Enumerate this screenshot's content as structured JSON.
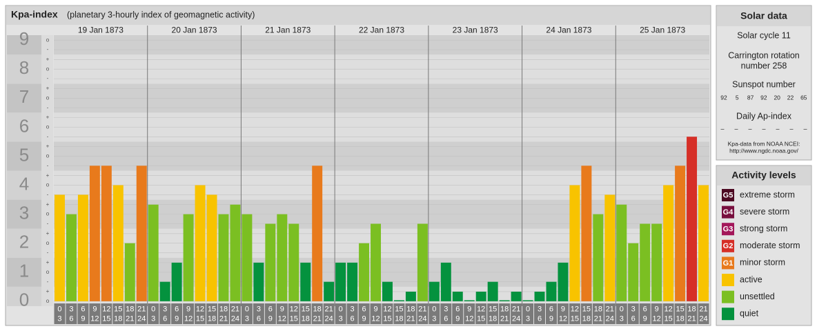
{
  "chart_data": {
    "type": "bar",
    "title": "Kpa-index",
    "subtitle": "(planetary 3-hourly index of geomagnetic activity)",
    "days": [
      "19 Jan 1873",
      "20 Jan 1873",
      "21 Jan 1873",
      "22 Jan 1873",
      "23 Jan 1873",
      "24 Jan 1873",
      "25 Jan 1873"
    ],
    "categories": [
      [
        0,
        3
      ],
      [
        3,
        6
      ],
      [
        6,
        9
      ],
      [
        9,
        12
      ],
      [
        12,
        15
      ],
      [
        15,
        18
      ],
      [
        18,
        21
      ],
      [
        21,
        24
      ],
      [
        0,
        3
      ],
      [
        3,
        6
      ],
      [
        6,
        9
      ],
      [
        9,
        12
      ],
      [
        12,
        15
      ],
      [
        15,
        18
      ],
      [
        18,
        21
      ],
      [
        21,
        24
      ],
      [
        0,
        3
      ],
      [
        3,
        6
      ],
      [
        6,
        9
      ],
      [
        9,
        12
      ],
      [
        12,
        15
      ],
      [
        15,
        18
      ],
      [
        18,
        21
      ],
      [
        21,
        24
      ],
      [
        0,
        3
      ],
      [
        3,
        6
      ],
      [
        6,
        9
      ],
      [
        9,
        12
      ],
      [
        12,
        15
      ],
      [
        15,
        18
      ],
      [
        18,
        21
      ],
      [
        21,
        24
      ],
      [
        0,
        3
      ],
      [
        3,
        6
      ],
      [
        6,
        9
      ],
      [
        9,
        12
      ],
      [
        12,
        15
      ],
      [
        15,
        18
      ],
      [
        18,
        21
      ],
      [
        21,
        24
      ],
      [
        0,
        3
      ],
      [
        3,
        6
      ],
      [
        6,
        9
      ],
      [
        9,
        12
      ],
      [
        12,
        15
      ],
      [
        15,
        18
      ],
      [
        18,
        21
      ],
      [
        21,
        24
      ],
      [
        0,
        3
      ],
      [
        3,
        6
      ],
      [
        6,
        9
      ],
      [
        9,
        12
      ],
      [
        12,
        15
      ],
      [
        15,
        18
      ],
      [
        18,
        21
      ],
      [
        21,
        24
      ]
    ],
    "values": [
      3.67,
      3,
      3.67,
      4.67,
      4.67,
      4,
      2,
      4.67,
      3.33,
      0.67,
      1.33,
      3,
      4,
      3.67,
      3,
      3.33,
      3,
      1.33,
      2.67,
      3,
      2.67,
      1.33,
      4.67,
      0.67,
      1.33,
      1.33,
      2,
      2.67,
      0.67,
      0,
      0.33,
      2.67,
      0.67,
      1.33,
      0.33,
      0,
      0.33,
      0.67,
      0,
      0.33,
      0,
      0.33,
      0.67,
      1.33,
      4,
      4.67,
      3,
      3.67,
      3.33,
      2,
      2.67,
      2.67,
      4,
      4.67,
      5.67,
      4
    ],
    "colors": [
      "#f8c300",
      "#7bbf22",
      "#f8c300",
      "#e87a1c",
      "#e87a1c",
      "#f8c300",
      "#7bbf22",
      "#e87a1c",
      "#7bbf22",
      "#04923e",
      "#04923e",
      "#7bbf22",
      "#f8c300",
      "#f8c300",
      "#7bbf22",
      "#7bbf22",
      "#7bbf22",
      "#04923e",
      "#7bbf22",
      "#7bbf22",
      "#7bbf22",
      "#04923e",
      "#e87a1c",
      "#04923e",
      "#04923e",
      "#04923e",
      "#7bbf22",
      "#7bbf22",
      "#04923e",
      "#04923e",
      "#04923e",
      "#7bbf22",
      "#04923e",
      "#04923e",
      "#04923e",
      "#04923e",
      "#04923e",
      "#04923e",
      "#04923e",
      "#04923e",
      "#04923e",
      "#04923e",
      "#04923e",
      "#04923e",
      "#f8c300",
      "#e87a1c",
      "#7bbf22",
      "#f8c300",
      "#7bbf22",
      "#7bbf22",
      "#7bbf22",
      "#7bbf22",
      "#f8c300",
      "#e87a1c",
      "#d62f27",
      "#f8c300"
    ],
    "ylim": [
      -0.17,
      9.17
    ],
    "yticks": [
      0,
      1,
      2,
      3,
      4,
      5,
      6,
      7,
      8,
      9
    ],
    "minor_yticks": [
      {
        "value": 0,
        "label": "o"
      },
      {
        "value": 0.33,
        "label": "+"
      },
      {
        "value": 0.67,
        "label": "-"
      },
      {
        "value": 1,
        "label": "o"
      },
      {
        "value": 1.33,
        "label": "+"
      },
      {
        "value": 1.67,
        "label": "-"
      },
      {
        "value": 2,
        "label": "o"
      },
      {
        "value": 2.33,
        "label": "+"
      },
      {
        "value": 2.67,
        "label": "-"
      },
      {
        "value": 3,
        "label": "o"
      },
      {
        "value": 3.33,
        "label": "+"
      },
      {
        "value": 3.67,
        "label": "-"
      },
      {
        "value": 4,
        "label": "o"
      },
      {
        "value": 4.33,
        "label": "+"
      },
      {
        "value": 4.67,
        "label": "-"
      },
      {
        "value": 5,
        "label": "o"
      },
      {
        "value": 5.33,
        "label": "+"
      },
      {
        "value": 5.67,
        "label": "-"
      },
      {
        "value": 6,
        "label": "o"
      },
      {
        "value": 6.33,
        "label": "+"
      },
      {
        "value": 6.67,
        "label": "-"
      },
      {
        "value": 7,
        "label": "o"
      },
      {
        "value": 7.33,
        "label": "+"
      },
      {
        "value": 7.67,
        "label": "-"
      },
      {
        "value": 8,
        "label": "o"
      },
      {
        "value": 8.33,
        "label": "+"
      },
      {
        "value": 8.67,
        "label": "-"
      },
      {
        "value": 9,
        "label": "o"
      }
    ],
    "grid": true
  },
  "solar_data": {
    "title": "Solar data",
    "solar_cycle": "Solar cycle 11",
    "carrington": [
      "Carrington rotation",
      "number 258"
    ],
    "sunspot_title": "Sunspot number",
    "sunspot_numbers": [
      92,
      5,
      87,
      92,
      20,
      22,
      65
    ],
    "ap_title": "Daily Ap-index",
    "ap_values": [
      "–",
      "–",
      "–",
      "–",
      "–",
      "–",
      "–"
    ],
    "source": [
      "Kpa-data from NOAA NCEI:",
      "http://www.ngdc.noaa.gov/"
    ]
  },
  "activity_levels": {
    "title": "Activity levels",
    "items": [
      {
        "badge": "G5",
        "label": "extreme storm",
        "color": "#4d0a22"
      },
      {
        "badge": "G4",
        "label": "severe storm",
        "color": "#780f3e"
      },
      {
        "badge": "G3",
        "label": "strong storm",
        "color": "#a3175a"
      },
      {
        "badge": "G2",
        "label": "moderate storm",
        "color": "#d62f27"
      },
      {
        "badge": "G1",
        "label": "minor storm",
        "color": "#e87a1c"
      },
      {
        "label": "active",
        "color": "#f8c300"
      },
      {
        "label": "unsettled",
        "color": "#7bbf22"
      },
      {
        "label": "quiet",
        "color": "#04923e"
      }
    ]
  }
}
